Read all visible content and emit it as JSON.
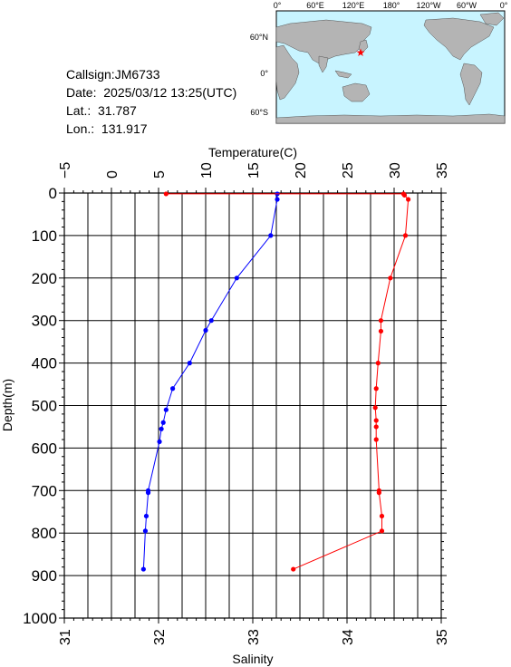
{
  "header": {
    "callsign": "Callsign:JM6733",
    "date": "Date:  2025/03/12 13:25(UTC)",
    "lat": "Lat.:  31.787",
    "lon": "Lon.:  131.917"
  },
  "map": {
    "lon_labels": [
      "0°",
      "60°E",
      "120°E",
      "180°",
      "120°W",
      "60°W",
      "0°"
    ],
    "lat_labels": [
      "60°N",
      "0°",
      "60°S"
    ],
    "marker": {
      "lat": 31.787,
      "lon": 131.917,
      "color": "#ff0000"
    },
    "ocean_color": "#c8f4ff",
    "land_color": "#b4b4b4"
  },
  "chart_data": {
    "type": "line",
    "title": "",
    "ylabel": "Depth(m)",
    "x_top_label": "Temperature(C)",
    "x_bottom_label": "Salinity",
    "ylim": [
      1000,
      0
    ],
    "temp_xlim": [
      -5,
      35
    ],
    "sal_xlim": [
      31,
      35
    ],
    "yticks": [
      "0",
      "100",
      "200",
      "300",
      "400",
      "500",
      "600",
      "700",
      "800",
      "900",
      "1000"
    ],
    "temp_ticks": [
      "-5",
      "0",
      "5",
      "10",
      "15",
      "20",
      "25",
      "30",
      "35"
    ],
    "sal_ticks": [
      "31",
      "32",
      "33",
      "34",
      "35"
    ],
    "series": [
      {
        "axis": "temperature",
        "color": "#0000ff",
        "depth": [
          2,
          15,
          100,
          200,
          300,
          323,
          400,
          460,
          510,
          540,
          555,
          585,
          700,
          705,
          760,
          795,
          885
        ],
        "values": [
          17.6,
          17.6,
          16.9,
          13.3,
          10.6,
          10.0,
          8.3,
          6.5,
          5.8,
          5.5,
          5.3,
          5.1,
          3.9,
          3.9,
          3.7,
          3.6,
          3.4
        ]
      },
      {
        "axis": "salinity",
        "color": "#ff0000",
        "depth": [
          2,
          2,
          5,
          15,
          100,
          200,
          300,
          325,
          400,
          460,
          505,
          535,
          550,
          580,
          700,
          705,
          760,
          795,
          885
        ],
        "values": [
          32.08,
          34.6,
          34.61,
          34.65,
          34.62,
          34.46,
          34.36,
          34.36,
          34.33,
          34.31,
          34.3,
          34.31,
          34.31,
          34.31,
          34.34,
          34.34,
          34.37,
          34.37,
          33.43
        ]
      }
    ]
  }
}
